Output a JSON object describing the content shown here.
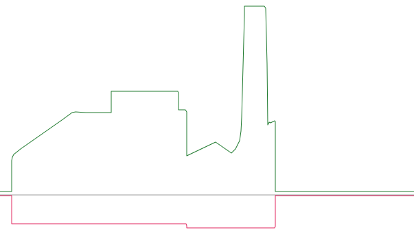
{
  "chart_data": {
    "type": "line",
    "title": "",
    "xlabel": "",
    "ylabel": "",
    "grid": false,
    "legend": "none",
    "baseline_color": "#9e9e9e",
    "series": [
      {
        "color": "#1f7a2e",
        "x": [
          0,
          17,
          17,
          18,
          20,
          30,
          60,
          90,
          105,
          110,
          125,
          160,
          162,
          162,
          259,
          260,
          260,
          270,
          272,
          272,
          314,
          337,
          343,
          349,
          351,
          352,
          356,
          356,
          385,
          387,
          389,
          390,
          392,
          394,
          400,
          401,
          401,
          603
        ],
        "y": [
          0,
          0,
          45,
          50,
          54,
          62,
          83,
          104,
          115,
          116,
          115,
          115,
          115,
          146,
          146,
          143,
          119,
          119,
          116,
          52,
          72,
          56,
          62,
          74,
          88,
          108,
          257,
          270,
          270,
          267,
          186,
          97,
          101,
          100,
          103,
          102,
          0,
          0
        ]
      },
      {
        "color": "#e0245e",
        "x": [
          0,
          17,
          17,
          271,
          272,
          272,
          400,
          401,
          401,
          603
        ],
        "y": [
          -6,
          -6,
          -47,
          -47,
          -50,
          -53,
          -53,
          -51,
          -6,
          -6
        ]
      }
    ]
  }
}
